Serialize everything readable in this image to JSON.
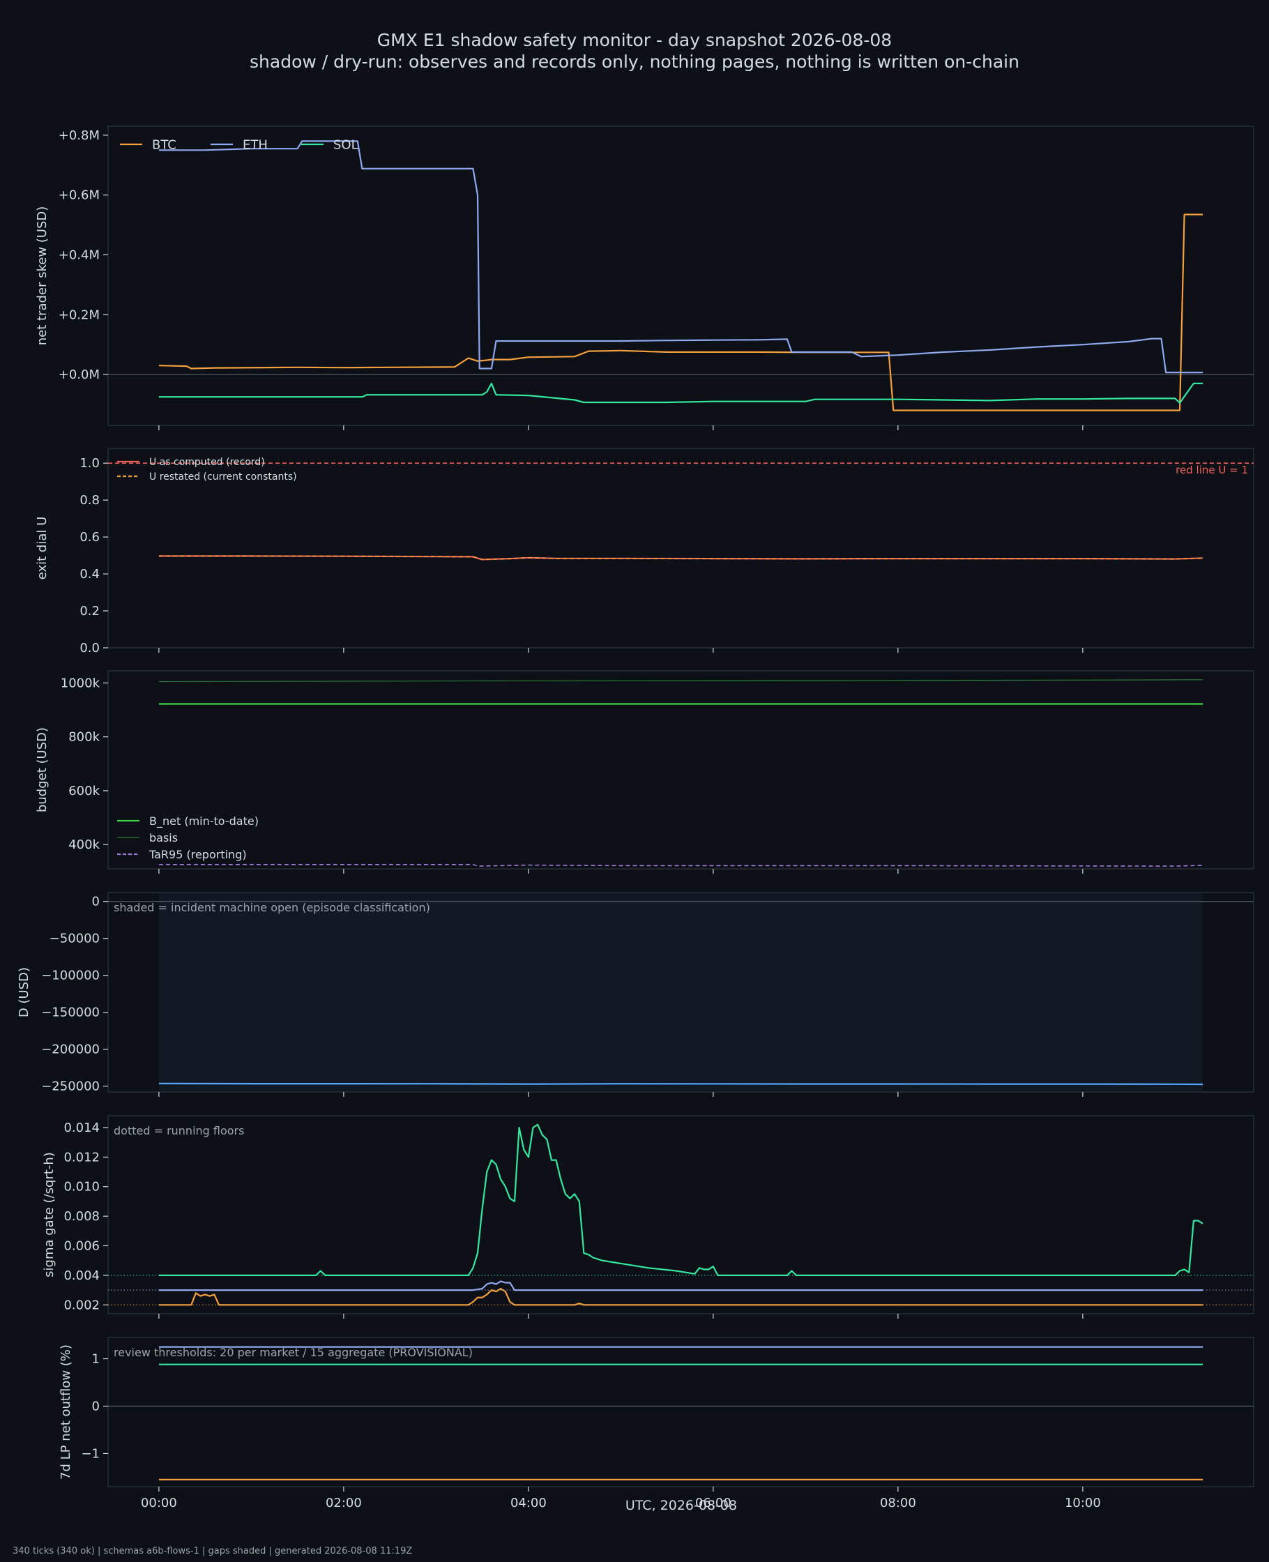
{
  "chart_data": {
    "type": "line",
    "title": "GMX E1 shadow safety monitor - day snapshot 2026-08-08",
    "subtitle": "shadow / dry-run: observes and records only, nothing pages, nothing is written on-chain",
    "xlabel": "UTC, 2026-08-08",
    "xlim": [
      -0.55,
      11.85
    ],
    "x_ticks": [
      0,
      2,
      4,
      6,
      8,
      10
    ],
    "x_tick_labels": [
      "00:00",
      "02:00",
      "04:00",
      "06:00",
      "08:00",
      "10:00"
    ],
    "footer": "340 ticks (340 ok) | schemas a6b-flows-1 | gaps shaded | generated 2026-08-08 11:19Z",
    "colors": {
      "BTC": "#f5a03c",
      "ETH": "#8fa8f0",
      "SOL": "#35e8a0",
      "background": "#0d1117",
      "panel": "#0d1117",
      "red_line": "#f0605a"
    },
    "panels": [
      {
        "ylabel": "net trader skew (USD)",
        "ylim": [
          -0.17,
          0.83
        ],
        "y_ticks": [
          0,
          0.2,
          0.4,
          0.6,
          0.8
        ],
        "y_tick_labels": [
          "+0.0M",
          "+0.2M",
          "+0.4M",
          "+0.6M",
          "+0.8M"
        ],
        "zero_line": true,
        "legend": "top-left-horizontal",
        "series": [
          {
            "name": "BTC",
            "color": "#f5a03c",
            "x": [
              0,
              0.3,
              0.35,
              0.6,
              1.5,
              2.0,
              2.5,
              3.2,
              3.35,
              3.45,
              3.55,
              3.6,
              3.8,
              4.0,
              4.05,
              4.5,
              4.65,
              5.0,
              5.5,
              6.0,
              6.5,
              7.0,
              7.5,
              7.9,
              7.95,
              8.2,
              8.5,
              9.0,
              9.5,
              10.0,
              10.5,
              10.95,
              11.05,
              11.1,
              11.2,
              11.3
            ],
            "values": [
              0.03,
              0.028,
              0.02,
              0.022,
              0.024,
              0.023,
              0.024,
              0.025,
              0.055,
              0.045,
              0.048,
              0.05,
              0.05,
              0.058,
              0.058,
              0.06,
              0.078,
              0.08,
              0.075,
              0.075,
              0.075,
              0.074,
              0.074,
              0.074,
              -0.12,
              -0.12,
              -0.12,
              -0.12,
              -0.12,
              -0.12,
              -0.12,
              -0.12,
              -0.12,
              0.535,
              0.535,
              0.535
            ]
          },
          {
            "name": "ETH",
            "color": "#8fa8f0",
            "x": [
              0,
              0.5,
              1.0,
              1.5,
              1.55,
              2.0,
              2.15,
              2.2,
              2.5,
              3.0,
              3.4,
              3.45,
              3.47,
              3.5,
              3.6,
              3.65,
              4.0,
              4.5,
              5.0,
              5.5,
              6.0,
              6.5,
              6.8,
              6.85,
              7.5,
              7.6,
              8.0,
              8.5,
              9.0,
              9.5,
              10.0,
              10.5,
              10.75,
              10.85,
              10.9,
              11.3
            ],
            "values": [
              0.75,
              0.75,
              0.755,
              0.755,
              0.78,
              0.78,
              0.78,
              0.688,
              0.688,
              0.688,
              0.688,
              0.6,
              0.02,
              0.02,
              0.02,
              0.112,
              0.112,
              0.112,
              0.112,
              0.114,
              0.115,
              0.116,
              0.118,
              0.075,
              0.075,
              0.06,
              0.065,
              0.075,
              0.082,
              0.092,
              0.1,
              0.11,
              0.12,
              0.12,
              0.007,
              0.007
            ]
          },
          {
            "name": "SOL",
            "color": "#35e8a0",
            "x": [
              0,
              0.5,
              1.0,
              1.5,
              2.0,
              2.2,
              2.25,
              2.5,
              3.0,
              3.5,
              3.55,
              3.6,
              3.65,
              4.0,
              4.5,
              4.6,
              5.0,
              5.5,
              6.0,
              6.5,
              7.0,
              7.1,
              7.5,
              8.0,
              8.5,
              9.0,
              9.5,
              10.0,
              10.5,
              11.0,
              11.05,
              11.2,
              11.3
            ],
            "values": [
              -0.075,
              -0.075,
              -0.075,
              -0.075,
              -0.075,
              -0.075,
              -0.068,
              -0.068,
              -0.068,
              -0.068,
              -0.058,
              -0.03,
              -0.068,
              -0.07,
              -0.085,
              -0.093,
              -0.093,
              -0.093,
              -0.09,
              -0.09,
              -0.09,
              -0.083,
              -0.083,
              -0.083,
              -0.085,
              -0.087,
              -0.082,
              -0.082,
              -0.08,
              -0.08,
              -0.095,
              -0.03,
              -0.03
            ]
          }
        ]
      },
      {
        "ylabel": "exit dial U",
        "ylim": [
          0,
          1.08
        ],
        "y_ticks": [
          0,
          0.2,
          0.4,
          0.6,
          0.8,
          1.0
        ],
        "y_tick_labels": [
          "0.0",
          "0.2",
          "0.4",
          "0.6",
          "0.8",
          "1.0"
        ],
        "legend": "top-left",
        "hline": {
          "y": 1.0,
          "color": "#f0605a",
          "label": "red line U = 1"
        },
        "series": [
          {
            "name": "U as computed (record)",
            "color": "#f0605a",
            "x": [
              0,
              1,
              2,
              3,
              3.4,
              3.5,
              3.8,
              4,
              4.3,
              5,
              6,
              7,
              8,
              9,
              10,
              11,
              11.3
            ],
            "values": [
              0.497,
              0.497,
              0.496,
              0.494,
              0.493,
              0.478,
              0.483,
              0.488,
              0.484,
              0.484,
              0.483,
              0.482,
              0.483,
              0.483,
              0.483,
              0.481,
              0.486
            ]
          },
          {
            "name": "U restated (current constants)",
            "color": "#f5a03c",
            "dashed": true,
            "x": [
              0,
              1,
              2,
              3,
              3.4,
              3.5,
              3.8,
              4,
              4.3,
              5,
              6,
              7,
              8,
              9,
              10,
              11,
              11.3
            ],
            "values": [
              0.497,
              0.497,
              0.496,
              0.494,
              0.493,
              0.478,
              0.483,
              0.488,
              0.484,
              0.484,
              0.483,
              0.482,
              0.483,
              0.483,
              0.483,
              0.481,
              0.486
            ]
          }
        ]
      },
      {
        "ylabel": "budget (USD)",
        "ylim": [
          310000,
          1045000
        ],
        "y_ticks": [
          400000,
          600000,
          800000,
          1000000
        ],
        "y_tick_labels": [
          "400k",
          "600k",
          "800k",
          "1000k"
        ],
        "legend": "lower-left",
        "series": [
          {
            "name": "B_net (min-to-date)",
            "color": "#3fd34a",
            "x": [
              0,
              11.3
            ],
            "values": [
              922000,
              922000
            ]
          },
          {
            "name": "basis",
            "color": "#2a7d3a",
            "x": [
              0,
              4,
              8,
              11.3
            ],
            "values": [
              1005000,
              1008000,
              1009000,
              1012000
            ]
          },
          {
            "name": "TaR95 (reporting)",
            "color": "#a07ae0",
            "dashed": true,
            "x": [
              0,
              2,
              3.4,
              3.45,
              4,
              5,
              8,
              11,
              11.3
            ],
            "values": [
              326000,
              326000,
              326000,
              320000,
              324000,
              322000,
              322000,
              320000,
              323000
            ]
          }
        ]
      },
      {
        "ylabel": "D (USD)",
        "ylim": [
          -258000,
          12000
        ],
        "y_ticks": [
          -250000,
          -200000,
          -150000,
          -100000,
          -50000,
          0
        ],
        "y_tick_labels": [
          "−250000",
          "−200000",
          "−150000",
          "−100000",
          "−50000",
          "0"
        ],
        "zero_line": true,
        "note": "shaded = incident machine open (episode classification)",
        "shade": {
          "from": 0,
          "to": 11.3
        },
        "series": [
          {
            "name": "D",
            "color": "#58a6ff",
            "x": [
              0,
              1,
              2,
              3,
              4,
              5,
              6,
              7,
              8,
              9,
              10,
              11,
              11.3
            ],
            "values": [
              -246500,
              -246800,
              -246800,
              -246900,
              -247200,
              -246900,
              -247000,
              -247100,
              -247100,
              -247200,
              -247200,
              -247400,
              -247600
            ]
          }
        ]
      },
      {
        "ylabel": "sigma gate (/sqrt-h)",
        "ylim": [
          0.0014,
          0.0148
        ],
        "y_ticks": [
          0.002,
          0.004,
          0.006,
          0.008,
          0.01,
          0.012,
          0.014
        ],
        "y_tick_labels": [
          "0.002",
          "0.004",
          "0.006",
          "0.008",
          "0.010",
          "0.012",
          "0.014"
        ],
        "note": "dotted = running floors",
        "floors": [
          {
            "y": 0.004,
            "color": "#35e8a0"
          },
          {
            "y": 0.003,
            "color": "#8fa8f0"
          },
          {
            "y": 0.002,
            "color": "#f5a03c"
          }
        ],
        "series": [
          {
            "name": "SOL",
            "color": "#35e8a0",
            "x": [
              0,
              1.7,
              1.75,
              1.8,
              3.35,
              3.4,
              3.45,
              3.5,
              3.55,
              3.6,
              3.65,
              3.7,
              3.75,
              3.8,
              3.85,
              3.9,
              3.95,
              4.0,
              4.05,
              4.1,
              4.15,
              4.2,
              4.25,
              4.3,
              4.35,
              4.4,
              4.45,
              4.5,
              4.55,
              4.6,
              4.65,
              4.7,
              4.8,
              5.0,
              5.3,
              5.6,
              5.8,
              5.85,
              5.9,
              5.95,
              6.0,
              6.05,
              6.1,
              6.15,
              6.8,
              6.85,
              6.9,
              11.0,
              11.05,
              11.1,
              11.15,
              11.2,
              11.25,
              11.3
            ],
            "values": [
              0.004,
              0.004,
              0.0043,
              0.004,
              0.004,
              0.0045,
              0.0055,
              0.0085,
              0.011,
              0.0118,
              0.0115,
              0.0105,
              0.01,
              0.0092,
              0.009,
              0.014,
              0.0125,
              0.012,
              0.014,
              0.0142,
              0.0135,
              0.0132,
              0.0118,
              0.0118,
              0.0105,
              0.0095,
              0.0092,
              0.0095,
              0.009,
              0.0055,
              0.0054,
              0.0052,
              0.005,
              0.0048,
              0.0045,
              0.0043,
              0.0041,
              0.0045,
              0.0044,
              0.0044,
              0.0046,
              0.004,
              0.004,
              0.004,
              0.004,
              0.0043,
              0.004,
              0.004,
              0.0043,
              0.0044,
              0.0042,
              0.0077,
              0.0077,
              0.0075
            ]
          },
          {
            "name": "ETH",
            "color": "#8fa8f0",
            "x": [
              0,
              3.4,
              3.5,
              3.55,
              3.6,
              3.65,
              3.7,
              3.75,
              3.8,
              3.85,
              11.3
            ],
            "values": [
              0.003,
              0.003,
              0.0031,
              0.0034,
              0.0035,
              0.0034,
              0.0036,
              0.0035,
              0.0035,
              0.003,
              0.003
            ]
          },
          {
            "name": "BTC",
            "color": "#f5a03c",
            "x": [
              0,
              0.35,
              0.4,
              0.45,
              0.5,
              0.55,
              0.6,
              0.65,
              3.35,
              3.4,
              3.45,
              3.5,
              3.55,
              3.6,
              3.65,
              3.7,
              3.75,
              3.8,
              3.85,
              4.5,
              4.55,
              4.6,
              11.3
            ],
            "values": [
              0.002,
              0.002,
              0.0028,
              0.0026,
              0.0027,
              0.0026,
              0.0027,
              0.002,
              0.002,
              0.0022,
              0.0025,
              0.0025,
              0.0027,
              0.003,
              0.0029,
              0.0031,
              0.0029,
              0.0022,
              0.002,
              0.002,
              0.0021,
              0.002,
              0.002
            ]
          }
        ]
      },
      {
        "ylabel": "7d LP net outflow (%)",
        "ylim": [
          -1.7,
          1.45
        ],
        "y_ticks": [
          -1,
          0,
          1
        ],
        "y_tick_labels": [
          "−1",
          "0",
          "1"
        ],
        "zero_line": true,
        "note": "review thresholds: 20 per market / 15 aggregate (PROVISIONAL)",
        "series": [
          {
            "name": "ETH",
            "color": "#8fa8f0",
            "x": [
              0,
              11.3
            ],
            "values": [
              1.25,
              1.25
            ]
          },
          {
            "name": "SOL",
            "color": "#35e8a0",
            "x": [
              0,
              11.3
            ],
            "values": [
              0.88,
              0.88
            ]
          },
          {
            "name": "BTC",
            "color": "#f5a03c",
            "x": [
              0,
              11.3
            ],
            "values": [
              -1.55,
              -1.55
            ]
          }
        ]
      }
    ]
  }
}
